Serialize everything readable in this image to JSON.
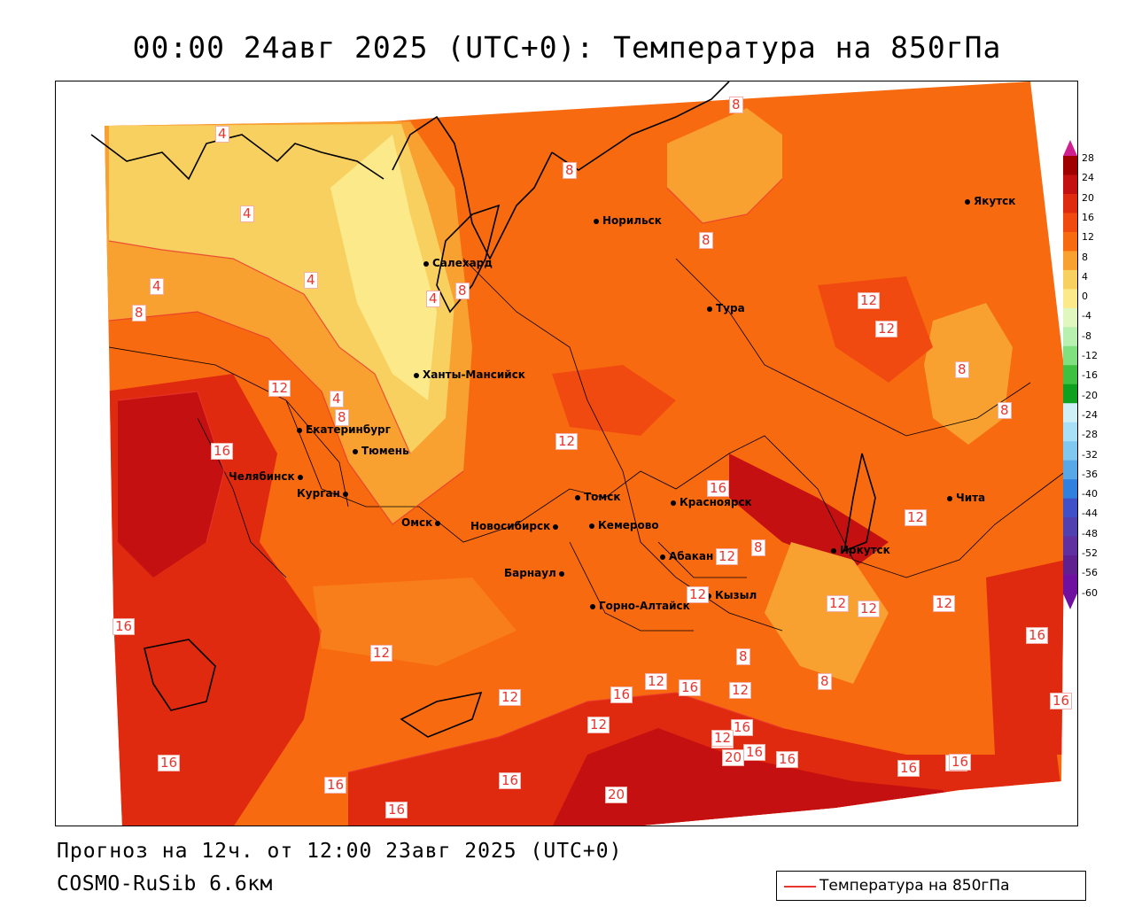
{
  "title": "00:00 24авг 2025 (UTC+0): Температура на 850гПа",
  "forecast_line": "Прогноз на 12ч. от 12:00 23авг 2025 (UTC+0)",
  "model_line": "COSMO-RuSib 6.6км",
  "legend": {
    "label": "Температура на 850гПа",
    "line_color": "#e8362f"
  },
  "colorbar": {
    "labels": [
      "28",
      "24",
      "20",
      "16",
      "12",
      "8",
      "4",
      "0",
      "-4",
      "-8",
      "-12",
      "-16",
      "-20",
      "-24",
      "-28",
      "-32",
      "-36",
      "-40",
      "-44",
      "-48",
      "-52",
      "-56",
      "-60"
    ],
    "colors": [
      "#a00000",
      "#c41010",
      "#e02a10",
      "#f04a10",
      "#f86a10",
      "#f8a030",
      "#f8d060",
      "#fbe98a",
      "#e0f8c0",
      "#b8f0b0",
      "#80e080",
      "#40c040",
      "#10a020",
      "#d0f0f8",
      "#a8e0f8",
      "#80c8f0",
      "#58a8e8",
      "#3080e0",
      "#4050c8",
      "#5040b0",
      "#6030a0",
      "#602090",
      "#7010a0"
    ]
  },
  "cities": [
    {
      "name": "Якутск"
    },
    {
      "name": "Норильск"
    },
    {
      "name": "Салехард"
    },
    {
      "name": "Тура"
    },
    {
      "name": "Ханты-Мансийск"
    },
    {
      "name": "Екатеринбург"
    },
    {
      "name": "Тюмень"
    },
    {
      "name": "Челябинск"
    },
    {
      "name": "Курган"
    },
    {
      "name": "Омск"
    },
    {
      "name": "Томск"
    },
    {
      "name": "Новосибирск"
    },
    {
      "name": "Кемерово"
    },
    {
      "name": "Красноярск"
    },
    {
      "name": "Абакан"
    },
    {
      "name": "Барнаул"
    },
    {
      "name": "Кызыл"
    },
    {
      "name": "Горно-Алтайск"
    },
    {
      "name": "Иркутск"
    },
    {
      "name": "Чита"
    }
  ],
  "isotherm_labels": [
    "4",
    "4",
    "4",
    "4",
    "8",
    "4",
    "8",
    "8",
    "8",
    "8",
    "8",
    "12",
    "12",
    "8",
    "8",
    "4",
    "12",
    "12",
    "12",
    "16",
    "16",
    "12",
    "12",
    "8",
    "12",
    "12",
    "12",
    "16",
    "16",
    "12",
    "16",
    "12",
    "12",
    "8",
    "12",
    "16",
    "12",
    "16",
    "16",
    "12",
    "8",
    "12",
    "16",
    "20",
    "16",
    "16",
    "16",
    "20",
    "20",
    "16",
    "16",
    "16",
    "16"
  ]
}
